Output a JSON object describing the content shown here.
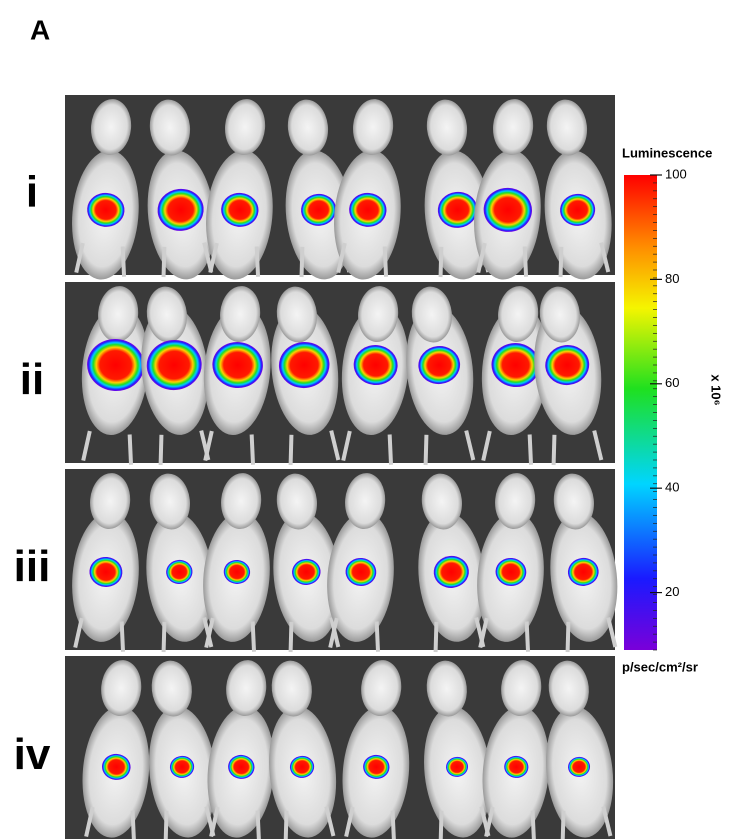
{
  "panel_label": "A",
  "rows": [
    {
      "label": "i"
    },
    {
      "label": "ii"
    },
    {
      "label": "iii"
    },
    {
      "label": "iv"
    }
  ],
  "colorbar": {
    "title": "Luminescence",
    "lim": [
      9,
      100
    ],
    "ticks": [
      100,
      80,
      60,
      40,
      20
    ],
    "multiplier": "x 10⁶",
    "unit": "p/sec/cm²/sr"
  }
}
